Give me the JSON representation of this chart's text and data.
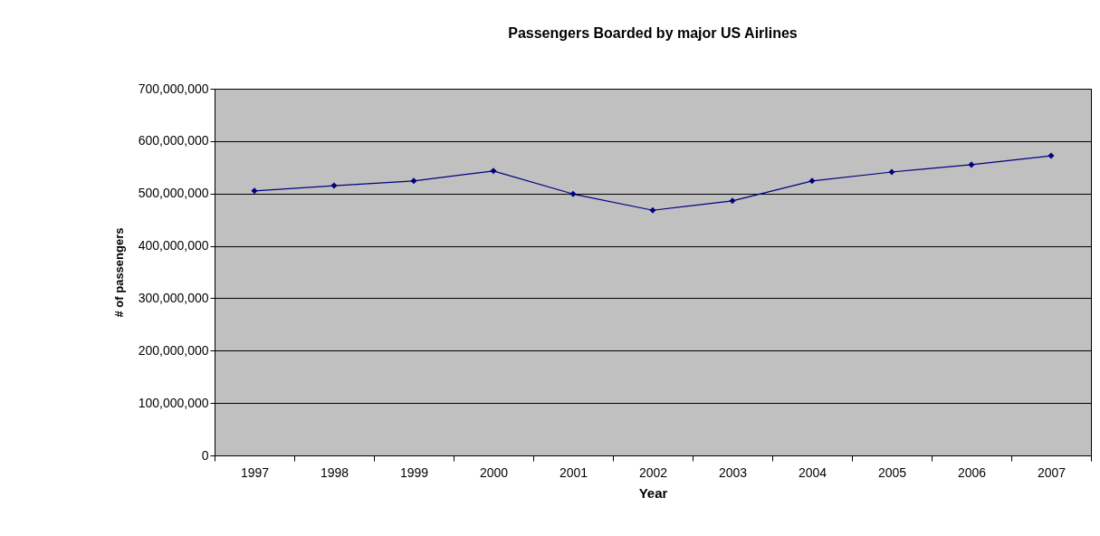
{
  "chart_data": {
    "type": "line",
    "title": "Passengers Boarded by major US Airlines",
    "xlabel": "Year",
    "ylabel": "# of passengers",
    "categories": [
      "1997",
      "1998",
      "1999",
      "2000",
      "2001",
      "2002",
      "2003",
      "2004",
      "2005",
      "2006",
      "2007"
    ],
    "series": [
      {
        "color": "#000080",
        "values": [
          505000000,
          515000000,
          524000000,
          543000000,
          499000000,
          468000000,
          486000000,
          524000000,
          541000000,
          555000000,
          572000000
        ]
      }
    ],
    "ylim": [
      0,
      700000000
    ],
    "yticks": [
      0,
      {
        "value": 100000000,
        "label": "100,000,000"
      },
      {
        "value": 200000000,
        "label": "200,000,000"
      },
      {
        "value": 300000000,
        "label": "300,000,000"
      },
      {
        "value": 400000000,
        "label": "400,000,000"
      },
      {
        "value": 500000000,
        "label": "500,000,000"
      },
      {
        "value": 600000000,
        "label": "600,000,000"
      },
      {
        "value": 700000000,
        "label": "700,000,000"
      }
    ],
    "grid": "y",
    "marker": "diamond",
    "line_style": "solid"
  }
}
